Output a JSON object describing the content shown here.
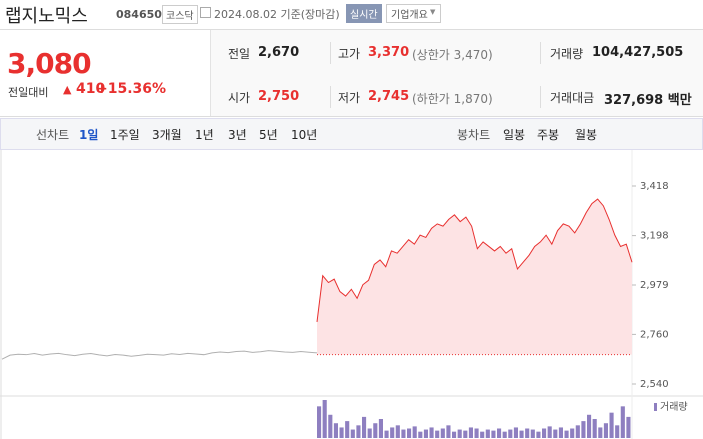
{
  "header": {
    "name": "랩지노믹스",
    "code": "084650",
    "market": "코스닥",
    "date": "2024.08.02 기준(장마감)",
    "realtime": "실시간",
    "overview": "기업개요"
  },
  "quote": {
    "price": "3,080",
    "change_label": "전일대비",
    "change": "410",
    "change_pct": "+15.36%",
    "items": [
      {
        "label": "전일",
        "value": "2,670"
      },
      {
        "label": "고가",
        "value": "3,370",
        "note": "(상한가 3,470)"
      },
      {
        "label": "거래량",
        "value": "104,427,505"
      },
      {
        "label": "시가",
        "value": "2,750"
      },
      {
        "label": "저가",
        "value": "2,745",
        "note": "(하한가 1,870)"
      },
      {
        "label": "거래대금",
        "value": "327,698 백만"
      }
    ]
  },
  "tabs": {
    "line_label": "선차트",
    "line": [
      "1일",
      "1주일",
      "3개월",
      "1년",
      "3년",
      "5년",
      "10년"
    ],
    "active": 0,
    "candle_label": "봉차트",
    "candle": [
      "일봉",
      "주봉",
      "월봉"
    ]
  },
  "chart_data": {
    "type": "line",
    "grid": false,
    "ylim": [
      2540,
      3418
    ],
    "yticks": [
      {
        "value": 2540,
        "label": "2,540"
      },
      {
        "value": 2760,
        "label": "2,760"
      },
      {
        "value": 2979,
        "label": "2,979"
      },
      {
        "value": 3198,
        "label": "3,198"
      },
      {
        "value": 3418,
        "label": "3,418"
      }
    ],
    "baseline": 2670,
    "series": [
      {
        "color": "#b0b0b0",
        "values": [
          2650,
          2668,
          2672,
          2670,
          2675,
          2668,
          2673,
          2676,
          2670,
          2666,
          2672,
          2675,
          2669,
          2665,
          2671,
          2668,
          2663,
          2667,
          2672,
          2670,
          2668,
          2674,
          2671,
          2676,
          2673,
          2670,
          2678,
          2682,
          2679,
          2684,
          2686,
          2680,
          2683,
          2688,
          2685,
          2682,
          2680,
          2684,
          2681,
          2678
        ]
      },
      {
        "color": "#e8302f",
        "values": [
          2815,
          3020,
          2990,
          3005,
          2950,
          2930,
          2960,
          2920,
          2980,
          3000,
          3070,
          3090,
          3060,
          3130,
          3120,
          3150,
          3180,
          3160,
          3200,
          3190,
          3230,
          3250,
          3240,
          3270,
          3290,
          3260,
          3280,
          3240,
          3140,
          3170,
          3150,
          3130,
          3150,
          3120,
          3140,
          3050,
          3080,
          3110,
          3150,
          3170,
          3200,
          3160,
          3220,
          3250,
          3240,
          3210,
          3250,
          3300,
          3340,
          3360,
          3330,
          3270,
          3200,
          3150,
          3160,
          3080
        ]
      }
    ],
    "volume_label": "거래량",
    "volume_color": "#8e7fc0",
    "volume": [
      30,
      36,
      22,
      14,
      10,
      16,
      8,
      12,
      20,
      9,
      14,
      18,
      7,
      10,
      12,
      8,
      9,
      11,
      6,
      8,
      10,
      7,
      9,
      12,
      6,
      8,
      7,
      10,
      9,
      6,
      8,
      7,
      9,
      6,
      8,
      10,
      7,
      9,
      8,
      6,
      9,
      11,
      8,
      10,
      7,
      9,
      12,
      16,
      22,
      18,
      10,
      14,
      24,
      12,
      30,
      20
    ]
  }
}
